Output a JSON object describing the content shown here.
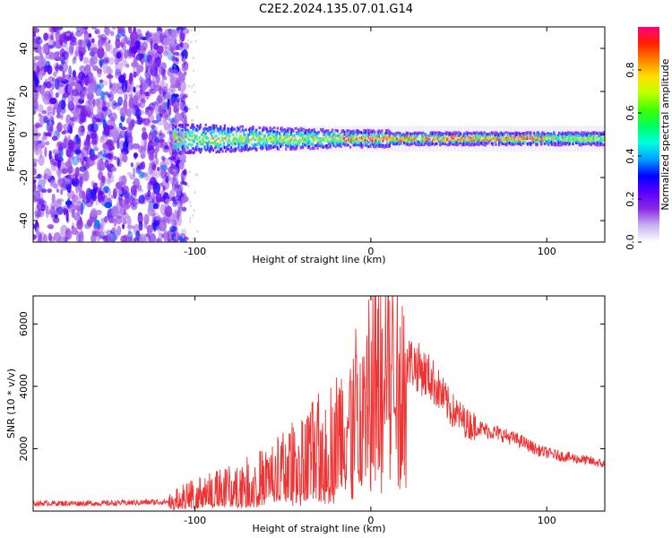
{
  "title": "C2E2.2024.135.07.01.G14",
  "chart_data": [
    {
      "type": "heatmap",
      "name": "spectrogram",
      "xlabel": "Height of straight line (km)",
      "ylabel": "Frequency (Hz)",
      "xlim": [
        -192,
        133
      ],
      "ylim": [
        -50,
        50
      ],
      "xticks": [
        -100,
        0,
        100
      ],
      "yticks": [
        -40,
        -20,
        0,
        20,
        40
      ],
      "xtick_labels": [
        "-100",
        "0",
        "100"
      ],
      "ytick_labels": [
        "-40",
        "-20",
        "0",
        "20",
        "40"
      ],
      "colorbar": {
        "label": "Normalized spectral amplitude",
        "range": [
          0,
          1
        ],
        "ticks": [
          0.0,
          0.2,
          0.4,
          0.6,
          0.8
        ],
        "tick_labels": [
          "0.0",
          "0.2",
          "0.4",
          "0.6",
          "0.8"
        ],
        "colors": [
          "#ffffff",
          "#c9b3f2",
          "#8a2be2",
          "#5a00ff",
          "#0000ff",
          "#00a0ff",
          "#00ffe0",
          "#00ff60",
          "#40ff00",
          "#c0ff00",
          "#ffe000",
          "#ff8000",
          "#ff2000",
          "#ff0080"
        ]
      },
      "features": {
        "noise_region_x": [
          -192,
          -113
        ],
        "signal_band_x": [
          -113,
          133
        ],
        "signal_center_hz": -2,
        "peak_region_x": [
          -25,
          100
        ]
      }
    },
    {
      "type": "line",
      "name": "snr",
      "xlabel": "Height of straight line (km)",
      "ylabel": "SNR (10 * v/v)",
      "xlim": [
        -192,
        133
      ],
      "ylim": [
        0,
        6900
      ],
      "xticks": [
        -100,
        0,
        100
      ],
      "yticks": [
        2000,
        4000,
        6000
      ],
      "xtick_labels": [
        "-100",
        "0",
        "100"
      ],
      "ytick_labels": [
        "2000",
        "4000",
        "6000"
      ],
      "color": "#ee3333",
      "envelope": {
        "x": [
          -192,
          -150,
          -115,
          -105,
          -80,
          -60,
          -40,
          -25,
          -15,
          -5,
          5,
          10,
          15,
          25,
          35,
          45,
          55,
          65,
          75,
          85,
          95,
          105,
          115,
          125,
          133
        ],
        "y": [
          250,
          250,
          300,
          500,
          800,
          1100,
          1700,
          2200,
          2700,
          3500,
          4700,
          5300,
          5000,
          4700,
          4200,
          3300,
          2800,
          2600,
          2450,
          2250,
          1950,
          1800,
          1700,
          1600,
          1500
        ]
      }
    }
  ],
  "colors": {
    "line": "#ee3333",
    "axis": "#000000",
    "background": "#ffffff"
  }
}
